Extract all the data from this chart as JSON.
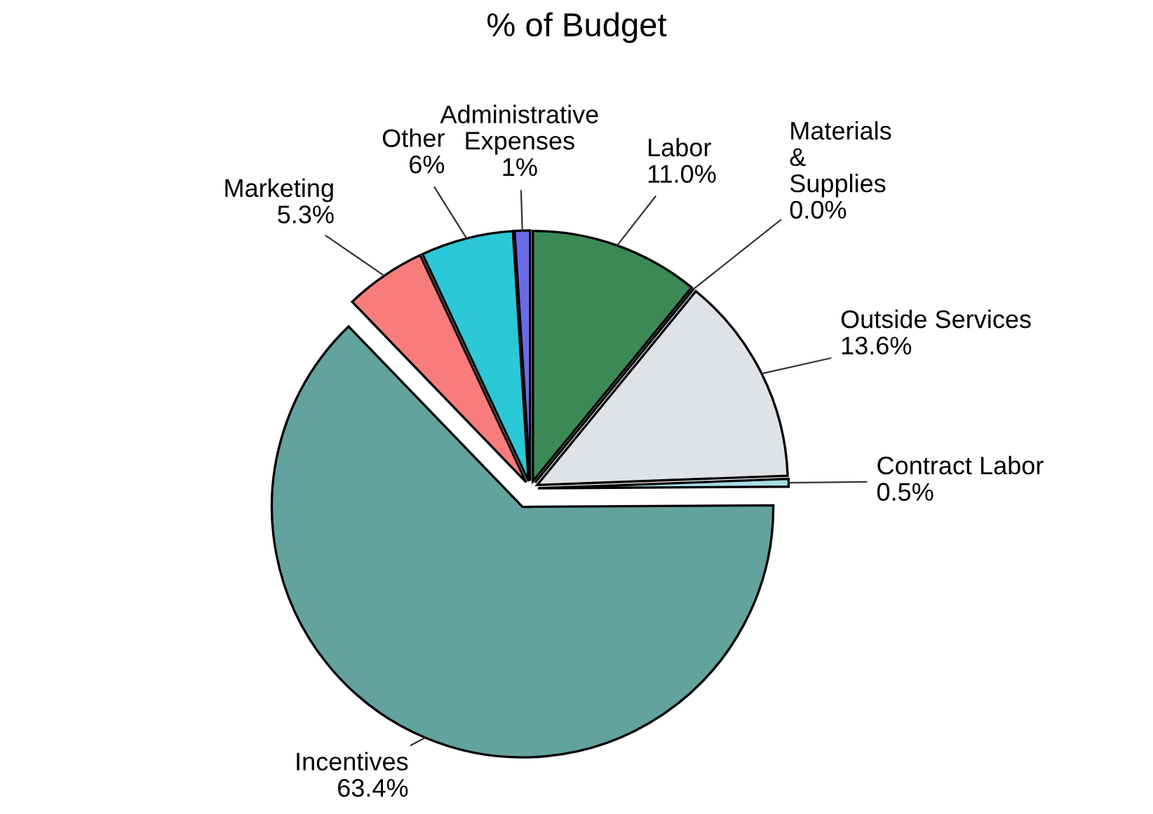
{
  "chart_data": {
    "type": "pie",
    "title": "% of Budget",
    "categories": [
      "Labor",
      "Materials\n&\nSupplies",
      "Outside Services",
      "Contract Labor",
      "Incentives",
      "Marketing",
      "Other",
      "Administrative\nExpenses"
    ],
    "values": [
      11.0,
      0.0,
      13.6,
      0.5,
      63.4,
      5.3,
      6,
      1
    ],
    "value_labels": [
      "11.0%",
      "0.0%",
      "13.6%",
      "0.5%",
      "63.4%",
      "5.3%",
      "6%",
      "1%"
    ],
    "colors": [
      "#3b8a56",
      "#9fb8d0",
      "#dfe2e6",
      "#a6dce6",
      "#62a39f",
      "#f87c7c",
      "#2bc8d8",
      "#6a6ae8"
    ],
    "legend": false
  }
}
